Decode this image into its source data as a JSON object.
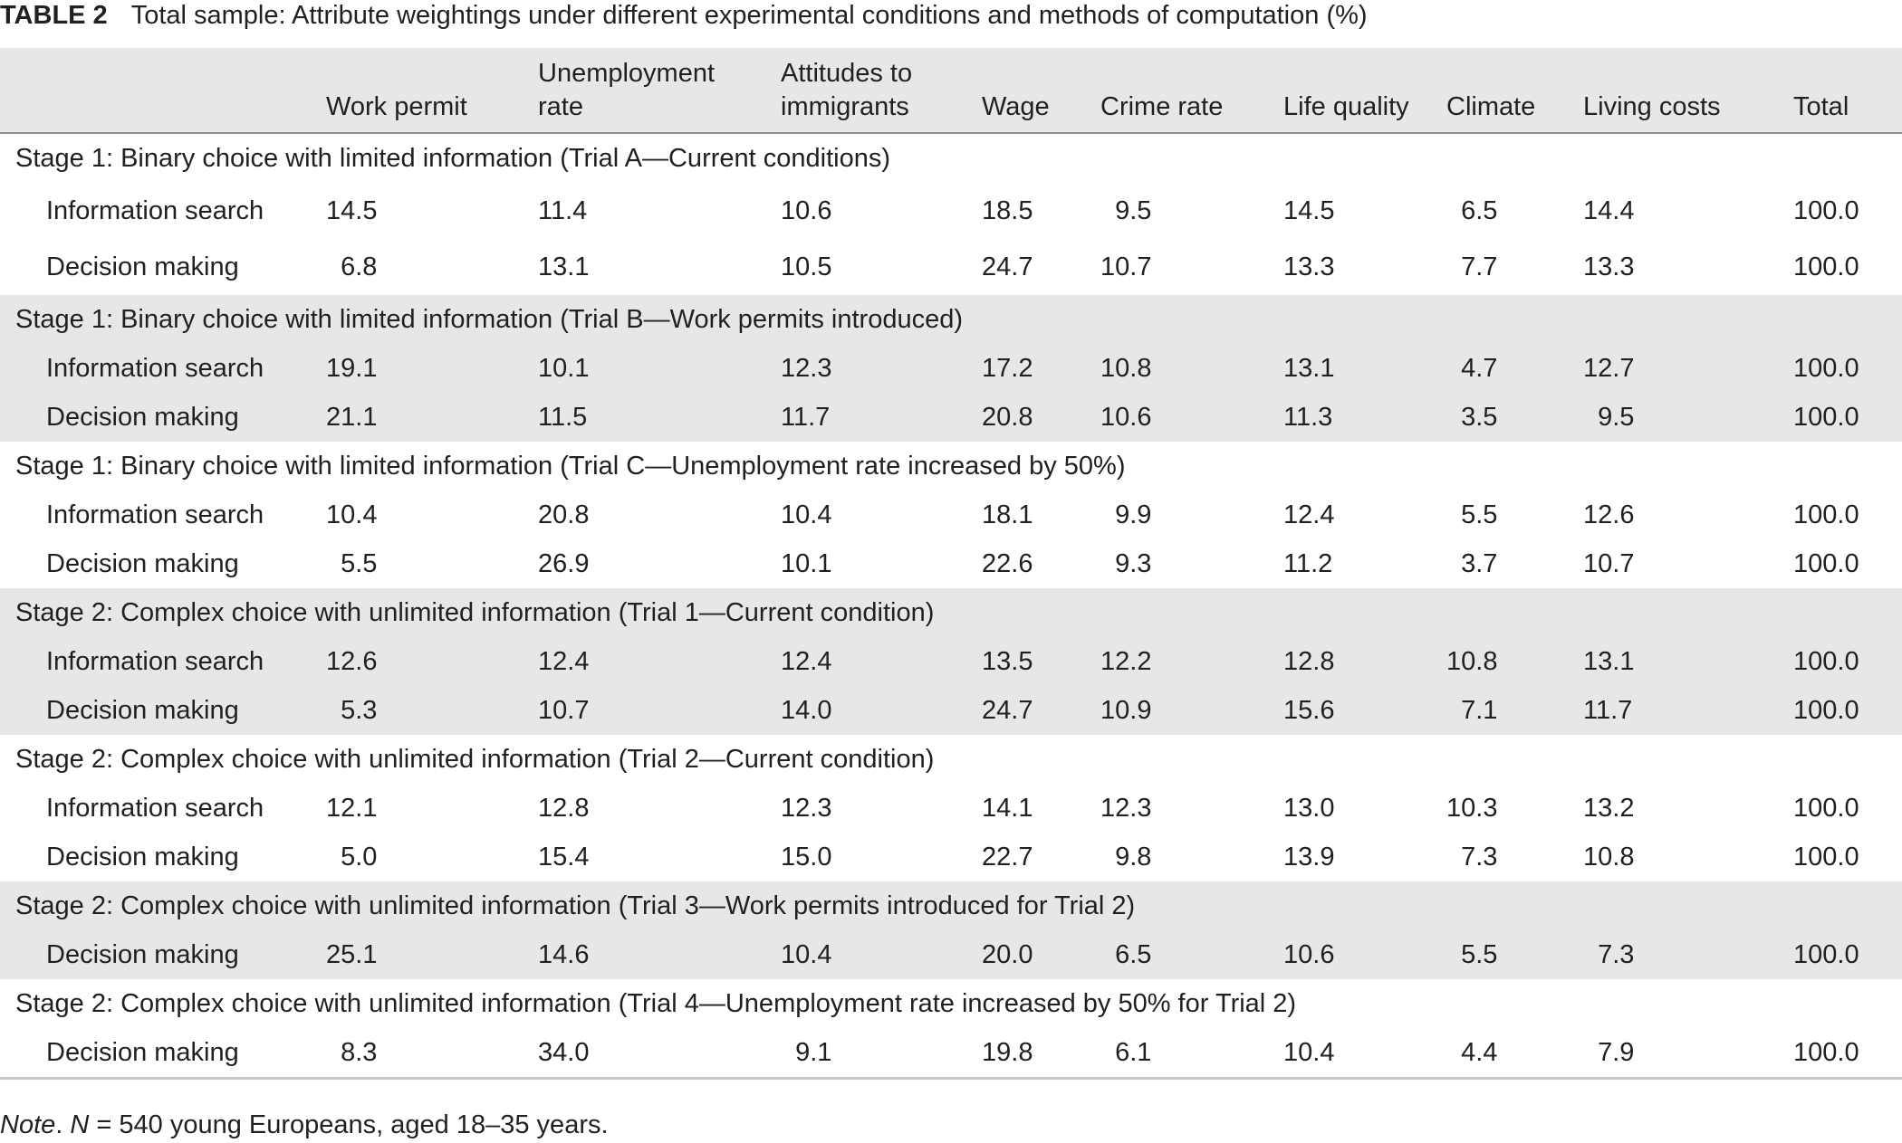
{
  "caption": {
    "label": "TABLE 2",
    "text": "Total sample: Attribute weightings under different experimental conditions and methods of computation (%)"
  },
  "columns": [
    {
      "line1": "",
      "line2": "Work permit"
    },
    {
      "line1": "Unemployment",
      "line2": "rate"
    },
    {
      "line1": "Attitudes to",
      "line2": "immigrants"
    },
    {
      "line1": "",
      "line2": "Wage"
    },
    {
      "line1": "",
      "line2": "Crime rate"
    },
    {
      "line1": "",
      "line2": "Life quality"
    },
    {
      "line1": "",
      "line2": "Climate"
    },
    {
      "line1": "",
      "line2": "Living costs"
    },
    {
      "line1": "",
      "line2": "Total"
    }
  ],
  "groups": [
    {
      "title": "Stage 1: Binary choice with limited information (Trial A—Current conditions)",
      "rows": [
        {
          "label": "Information search",
          "values": [
            "14.5",
            "11.4",
            "10.6",
            "18.5",
            "9.5",
            "14.5",
            "6.5",
            "14.4",
            "100.0"
          ]
        },
        {
          "label": "Decision making",
          "values": [
            "6.8",
            "13.1",
            "10.5",
            "24.7",
            "10.7",
            "13.3",
            "7.7",
            "13.3",
            "100.0"
          ]
        }
      ]
    },
    {
      "title": "Stage 1: Binary choice with limited information (Trial B—Work permits introduced)",
      "rows": [
        {
          "label": "Information search",
          "values": [
            "19.1",
            "10.1",
            "12.3",
            "17.2",
            "10.8",
            "13.1",
            "4.7",
            "12.7",
            "100.0"
          ]
        },
        {
          "label": "Decision making",
          "values": [
            "21.1",
            "11.5",
            "11.7",
            "20.8",
            "10.6",
            "11.3",
            "3.5",
            "9.5",
            "100.0"
          ]
        }
      ]
    },
    {
      "title": "Stage 1: Binary choice with limited information (Trial C—Unemployment rate increased by 50%)",
      "rows": [
        {
          "label": "Information search",
          "values": [
            "10.4",
            "20.8",
            "10.4",
            "18.1",
            "9.9",
            "12.4",
            "5.5",
            "12.6",
            "100.0"
          ]
        },
        {
          "label": "Decision making",
          "values": [
            "5.5",
            "26.9",
            "10.1",
            "22.6",
            "9.3",
            "11.2",
            "3.7",
            "10.7",
            "100.0"
          ]
        }
      ]
    },
    {
      "title": "Stage 2: Complex choice with unlimited information (Trial 1—Current condition)",
      "rows": [
        {
          "label": "Information search",
          "values": [
            "12.6",
            "12.4",
            "12.4",
            "13.5",
            "12.2",
            "12.8",
            "10.8",
            "13.1",
            "100.0"
          ]
        },
        {
          "label": "Decision making",
          "values": [
            "5.3",
            "10.7",
            "14.0",
            "24.7",
            "10.9",
            "15.6",
            "7.1",
            "11.7",
            "100.0"
          ]
        }
      ]
    },
    {
      "title": "Stage 2: Complex choice with unlimited information (Trial 2—Current condition)",
      "rows": [
        {
          "label": "Information search",
          "values": [
            "12.1",
            "12.8",
            "12.3",
            "14.1",
            "12.3",
            "13.0",
            "10.3",
            "13.2",
            "100.0"
          ]
        },
        {
          "label": "Decision making",
          "values": [
            "5.0",
            "15.4",
            "15.0",
            "22.7",
            "9.8",
            "13.9",
            "7.3",
            "10.8",
            "100.0"
          ]
        }
      ]
    },
    {
      "title": "Stage 2: Complex choice with unlimited information (Trial 3—Work permits introduced for Trial 2)",
      "rows": [
        {
          "label": "Decision making",
          "values": [
            "25.1",
            "14.6",
            "10.4",
            "20.0",
            "6.5",
            "10.6",
            "5.5",
            "7.3",
            "100.0"
          ]
        }
      ]
    },
    {
      "title": "Stage 2: Complex choice with unlimited information (Trial 4—Unemployment rate increased by 50% for Trial 2)",
      "rows": [
        {
          "label": "Decision making",
          "values": [
            "8.3",
            "34.0",
            "9.1",
            "19.8",
            "6.1",
            "10.4",
            "4.4",
            "7.9",
            "100.0"
          ]
        }
      ]
    }
  ],
  "note": {
    "prefix": "Note",
    "n_symbol": "N",
    "text": " = 540 young Europeans, aged 18–35 years."
  }
}
